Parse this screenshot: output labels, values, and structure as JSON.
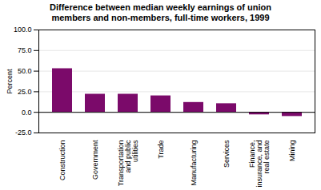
{
  "chart_data": {
    "type": "bar",
    "title": "Difference between median weekly earnings of union\nmembers and non-members, full-time workers, 1999",
    "categories": [
      "Construction",
      "Government",
      "Transportation\nand public\nutilities",
      "Trade",
      "Manufacturing",
      "Services",
      "Finance,\ninsurance, and\nreal estate",
      "Mining"
    ],
    "values": [
      53.0,
      22.0,
      22.0,
      20.0,
      12.0,
      10.5,
      -3.0,
      -5.0
    ],
    "color": "#7B0A6A",
    "ylabel": "Percent",
    "ylim": [
      -25,
      100
    ],
    "yticks": [
      {
        "value": -25,
        "label": "-25.0"
      },
      {
        "value": 0,
        "label": "0.0"
      },
      {
        "value": 25,
        "label": "25.0"
      },
      {
        "value": 50,
        "label": "50.0"
      },
      {
        "value": 75,
        "label": "75.0"
      },
      {
        "value": 100,
        "label": "100.0"
      }
    ],
    "grid": true
  }
}
